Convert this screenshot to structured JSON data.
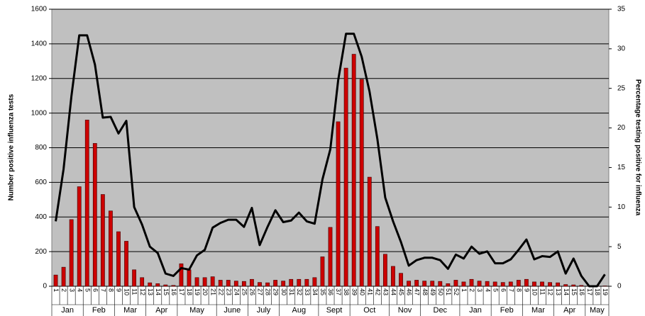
{
  "chart_data": {
    "type": "bar_line",
    "y_label": "Number positive influenza tests",
    "y2_label": "Percentage testing positive for influenza",
    "categories": [
      "1",
      "2",
      "3",
      "4",
      "5",
      "6",
      "7",
      "8",
      "9",
      "10",
      "11",
      "12",
      "13",
      "14",
      "15",
      "16",
      "17",
      "18",
      "19",
      "20",
      "21",
      "22",
      "23",
      "24",
      "25",
      "26",
      "27",
      "28",
      "29",
      "30",
      "31",
      "32",
      "33",
      "34",
      "35",
      "36",
      "37",
      "38",
      "39",
      "40",
      "41",
      "42",
      "43",
      "44",
      "45",
      "46",
      "47",
      "48",
      "49",
      "50",
      "51",
      "52",
      "1",
      "2",
      "3",
      "4",
      "5",
      "6",
      "7",
      "8",
      "9",
      "10",
      "11",
      "12",
      "13",
      "14",
      "15",
      "16",
      "17",
      "18",
      "19"
    ],
    "month_groups": [
      {
        "label": "Jan",
        "weeks": 4
      },
      {
        "label": "Feb",
        "weeks": 4
      },
      {
        "label": "Mar",
        "weeks": 4
      },
      {
        "label": "Apr",
        "weeks": 4
      },
      {
        "label": "May",
        "weeks": 5
      },
      {
        "label": "June",
        "weeks": 4
      },
      {
        "label": "July",
        "weeks": 4
      },
      {
        "label": "Aug",
        "weeks": 5
      },
      {
        "label": "Sept",
        "weeks": 4
      },
      {
        "label": "Oct",
        "weeks": 5
      },
      {
        "label": "Nov",
        "weeks": 4
      },
      {
        "label": "Dec",
        "weeks": 5
      },
      {
        "label": "Jan",
        "weeks": 4
      },
      {
        "label": "Feb",
        "weeks": 4
      },
      {
        "label": "Mar",
        "weeks": 4
      },
      {
        "label": "Apr",
        "weeks": 4
      },
      {
        "label": "May",
        "weeks": 3
      }
    ],
    "series": [
      {
        "type": "bar",
        "color": "#cc0000",
        "values": [
          65,
          110,
          385,
          575,
          960,
          825,
          530,
          435,
          315,
          260,
          95,
          50,
          20,
          15,
          8,
          5,
          130,
          95,
          50,
          50,
          55,
          35,
          35,
          30,
          28,
          40,
          22,
          20,
          35,
          30,
          40,
          40,
          40,
          50,
          170,
          340,
          950,
          1260,
          1340,
          1195,
          630,
          345,
          185,
          115,
          75,
          30,
          35,
          30,
          30,
          28,
          15,
          35,
          25,
          40,
          30,
          28,
          25,
          22,
          25,
          35,
          40,
          25,
          25,
          22,
          20,
          10,
          8,
          5,
          3,
          2,
          2
        ]
      },
      {
        "type": "line",
        "color": "#000000",
        "axis": "y2",
        "values": [
          8.2,
          14.8,
          24,
          31.7,
          31.7,
          28,
          21.3,
          21.4,
          19.3,
          20.9,
          10,
          7.8,
          5,
          4.2,
          1.6,
          1.3,
          2.3,
          2.1,
          3.9,
          4.6,
          7.4,
          8,
          8.4,
          8.4,
          7.5,
          9.9,
          5.2,
          7.5,
          9.6,
          8.1,
          8.3,
          9.3,
          8.2,
          7.9,
          13.5,
          17.3,
          26,
          31.9,
          31.9,
          29,
          24.6,
          18.6,
          11.2,
          8.2,
          5.6,
          2.6,
          3.3,
          3.6,
          3.6,
          3.3,
          2.2,
          4,
          3.5,
          5,
          4.1,
          4.4,
          2.9,
          2.9,
          3.4,
          4.6,
          5.9,
          3.4,
          3.8,
          3.7,
          4.4,
          1.6,
          3.5,
          1.3,
          0,
          0,
          1.5
        ]
      }
    ],
    "ylim": [
      0,
      1600
    ],
    "yticks": [
      0,
      200,
      400,
      600,
      800,
      1000,
      1200,
      1400,
      1600
    ],
    "y2lim": [
      0,
      35
    ],
    "y2ticks": [
      0,
      5,
      10,
      15,
      20,
      25,
      30,
      35
    ],
    "grid": true,
    "background": "#c0c0c0"
  }
}
